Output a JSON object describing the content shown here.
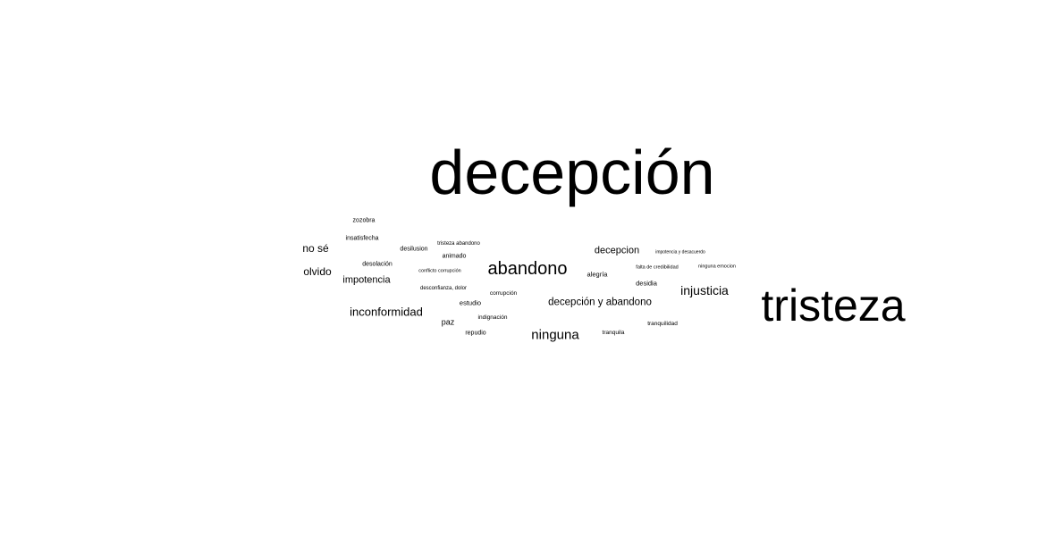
{
  "cloud": {
    "text_color": "#000000",
    "background": "#ffffff",
    "words": [
      {
        "text": "decepción"
      },
      {
        "text": "tristeza"
      },
      {
        "text": "abandono"
      },
      {
        "text": "ninguna"
      },
      {
        "text": "injusticia"
      },
      {
        "text": "inconformidad"
      },
      {
        "text": "decepción y abandono"
      },
      {
        "text": "no sé"
      },
      {
        "text": "olvido"
      },
      {
        "text": "impotencia"
      },
      {
        "text": "decepcion"
      },
      {
        "text": "zozobra"
      },
      {
        "text": "insatisfecha"
      },
      {
        "text": "desilusion"
      },
      {
        "text": "tristeza abandono"
      },
      {
        "text": "animado"
      },
      {
        "text": "desolación"
      },
      {
        "text": "conflicto corrupción"
      },
      {
        "text": "desconfianza, dolor"
      },
      {
        "text": "estudio"
      },
      {
        "text": "corrupción"
      },
      {
        "text": "paz"
      },
      {
        "text": "indignación"
      },
      {
        "text": "repudio"
      },
      {
        "text": "alegría"
      },
      {
        "text": "impotencia y desacuerdo"
      },
      {
        "text": "falta de credibilidad"
      },
      {
        "text": "ninguna emocion"
      },
      {
        "text": "desidia"
      },
      {
        "text": "tranquilidad"
      },
      {
        "text": "tranquila"
      }
    ]
  }
}
